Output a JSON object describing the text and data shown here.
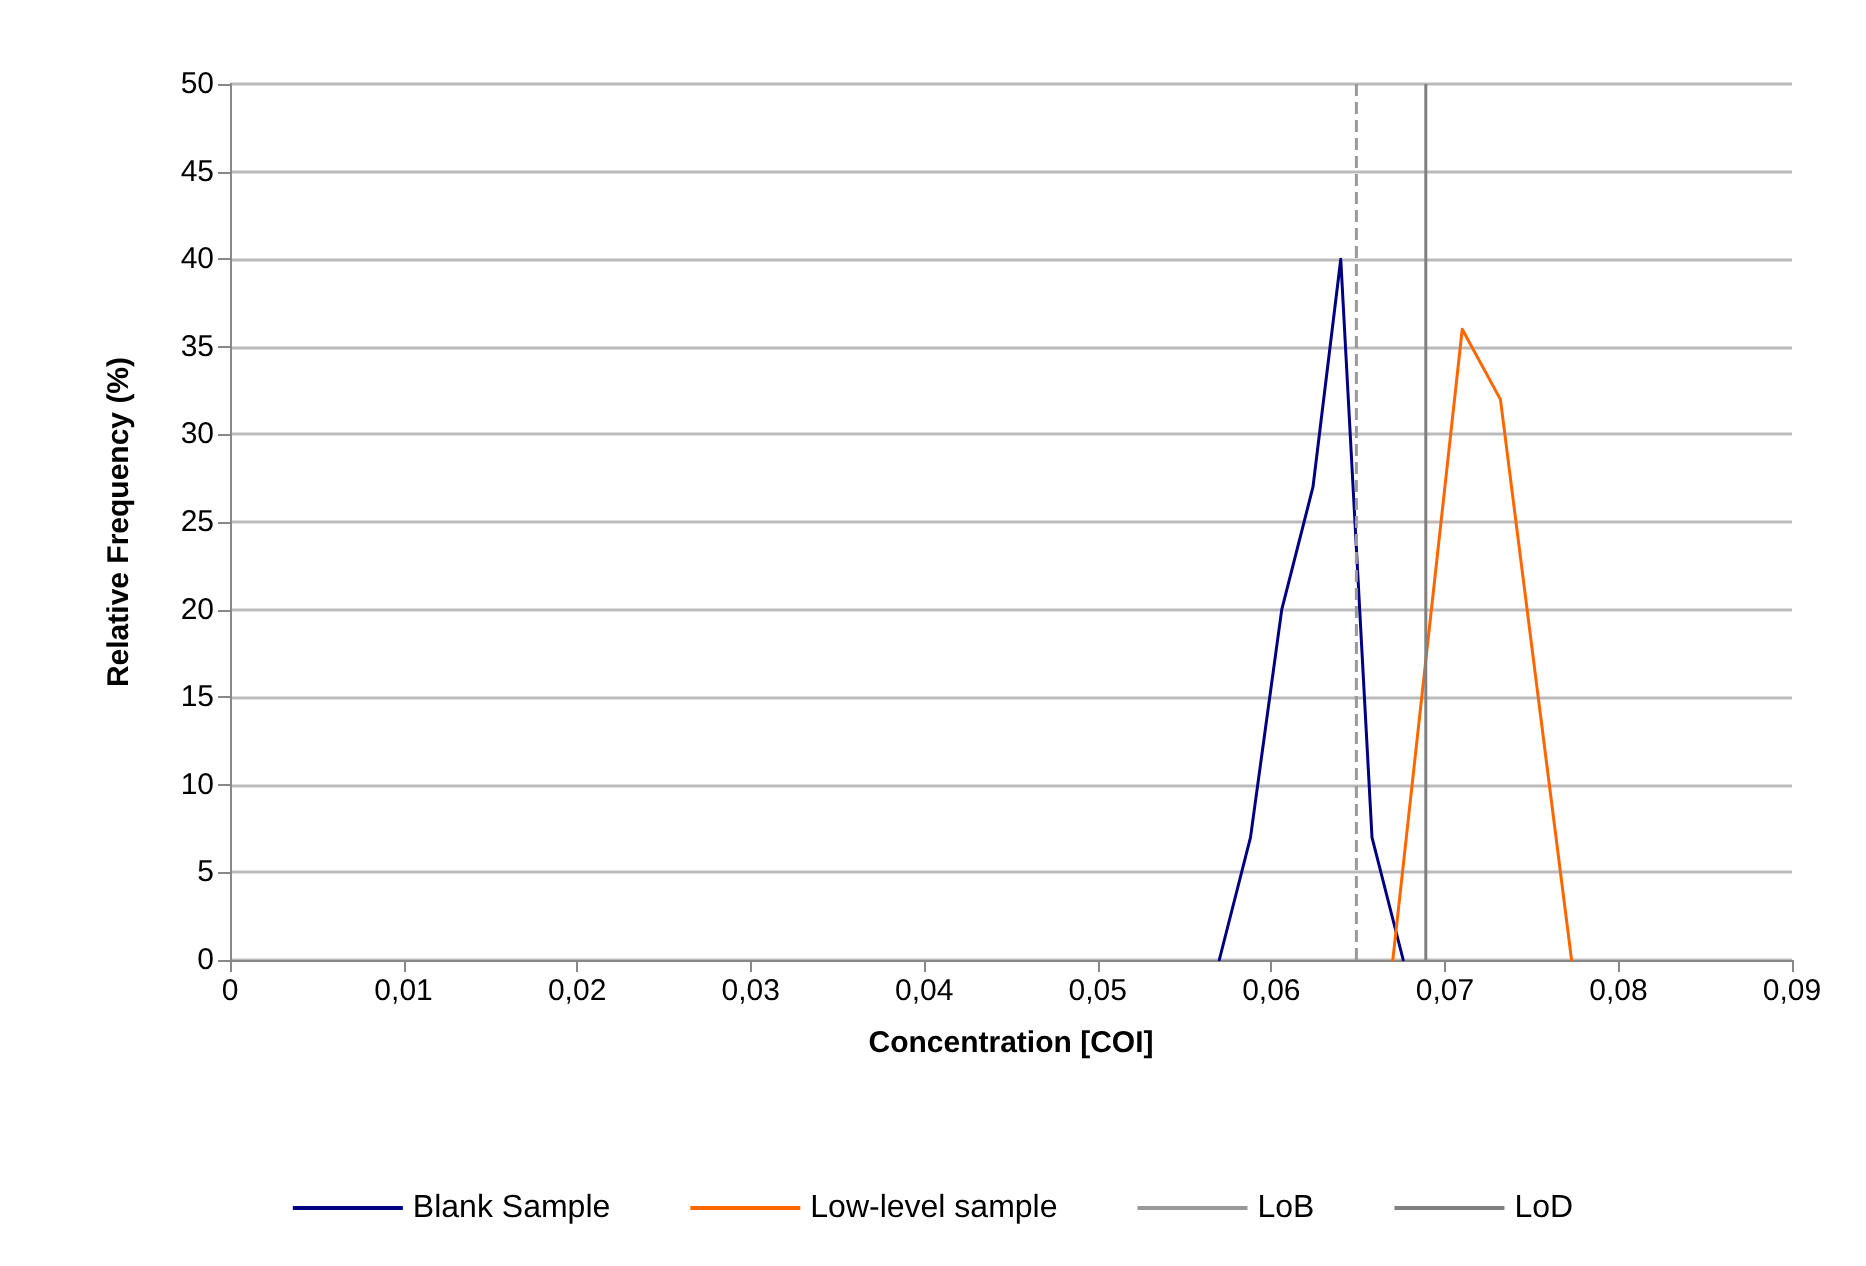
{
  "chart_data": {
    "type": "line",
    "xlabel": "Concentration [COI]",
    "ylabel": "Relative Frequency (%)",
    "series": [
      {
        "name": "Blank Sample",
        "color": "#000080",
        "x": [
          0.057,
          0.0588,
          0.0606,
          0.0624,
          0.064,
          0.0658,
          0.0676
        ],
        "values": [
          0,
          7,
          20,
          27,
          40,
          7,
          0
        ]
      },
      {
        "name": "Low-level sample",
        "color": "#ff6600",
        "x": [
          0.067,
          0.071,
          0.0732,
          0.0773
        ],
        "values": [
          0,
          36,
          32,
          0
        ]
      }
    ],
    "ref_lines": [
      {
        "axis": "x",
        "value": 0.0649,
        "label": "LoB",
        "color": "#999999",
        "line_style": "dashed"
      },
      {
        "axis": "x",
        "value": 0.0689,
        "label": "LoD",
        "color": "#808080",
        "line_style": "solid"
      }
    ],
    "xlim": [
      0,
      0.09
    ],
    "xticks": [
      0,
      {
        "value": 0.01,
        "label": "0,01"
      },
      {
        "value": 0.02,
        "label": "0,02"
      },
      {
        "value": 0.03,
        "label": "0,03"
      },
      {
        "value": 0.04,
        "label": "0,04"
      },
      {
        "value": 0.05,
        "label": "0,05"
      },
      {
        "value": 0.06,
        "label": "0,06"
      },
      {
        "value": 0.07,
        "label": "0,07"
      },
      {
        "value": 0.08,
        "label": "0,08"
      },
      {
        "value": 0.09,
        "label": "0,09"
      }
    ],
    "ylim": [
      0,
      50
    ],
    "yticks": [
      0,
      5,
      10,
      15,
      20,
      25,
      30,
      35,
      40,
      45,
      50
    ],
    "grid": "y",
    "legend": "bottom",
    "marker": "none",
    "line_style": "solid"
  }
}
